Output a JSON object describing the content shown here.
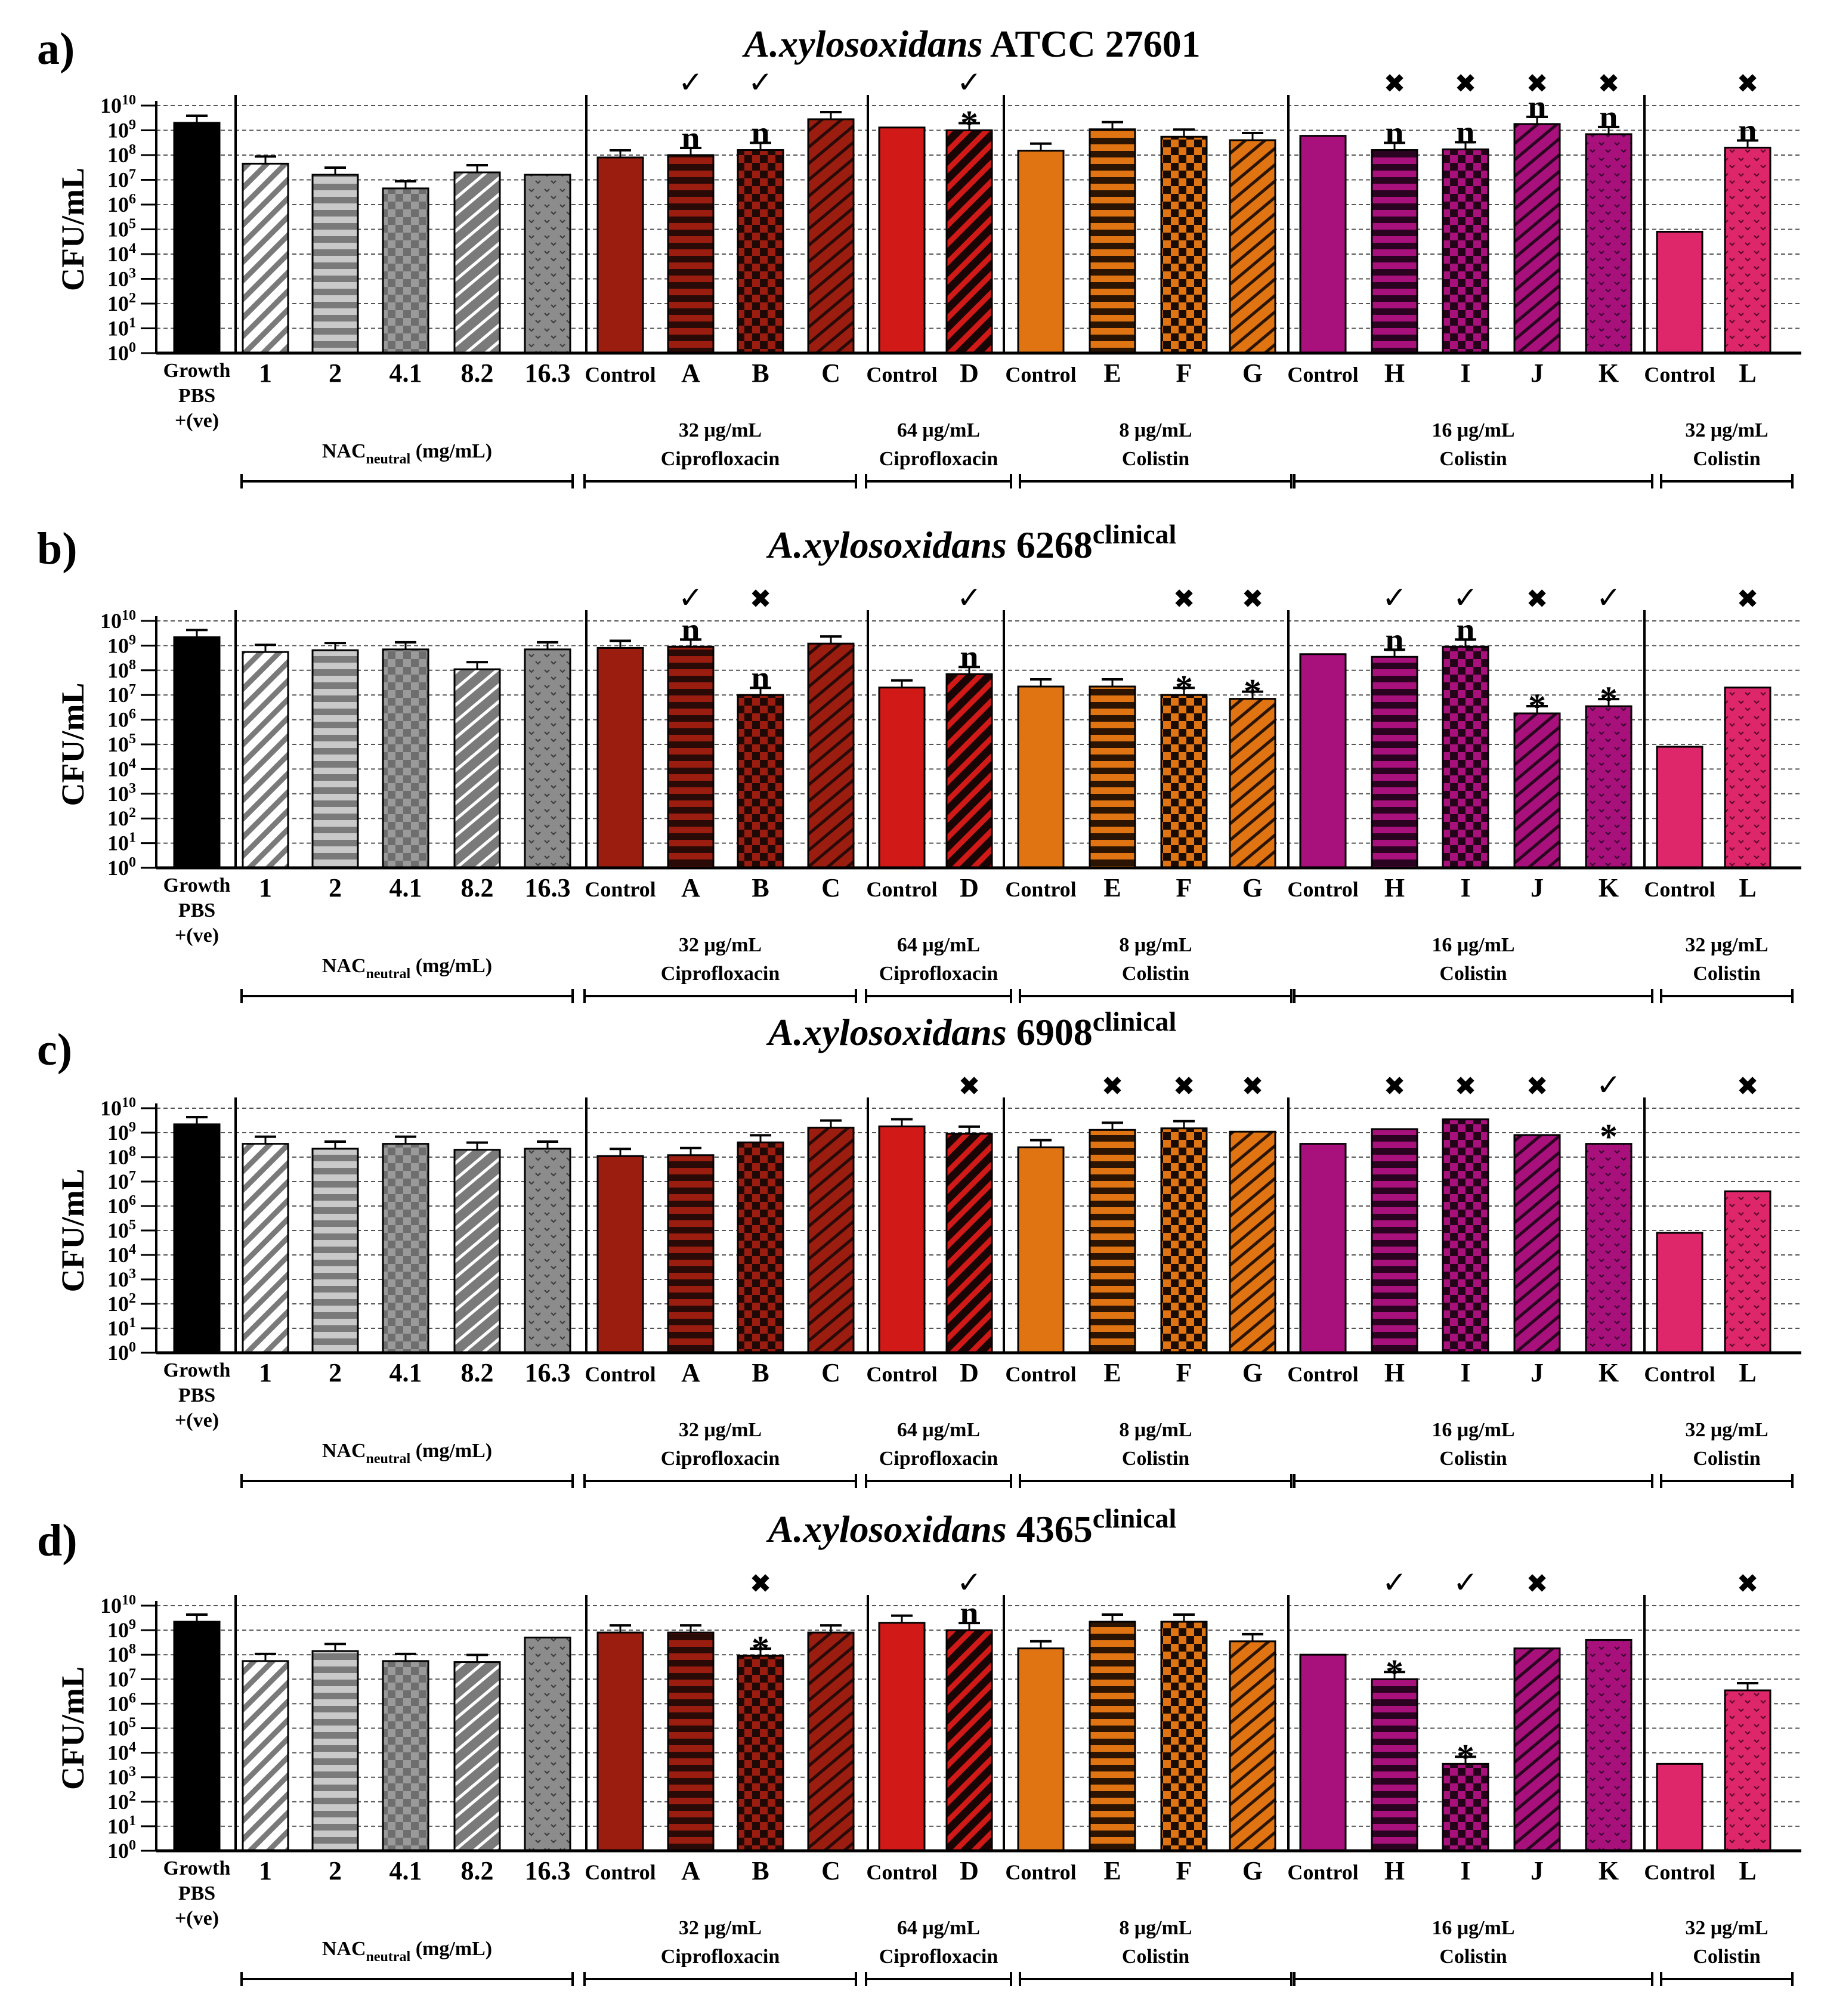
{
  "figure": {
    "ylabel": "CFU/mL",
    "y_ticks": [
      {
        "base": "10",
        "exp": "0"
      },
      {
        "base": "10",
        "exp": "1"
      },
      {
        "base": "10",
        "exp": "2"
      },
      {
        "base": "10",
        "exp": "3"
      },
      {
        "base": "10",
        "exp": "4"
      },
      {
        "base": "10",
        "exp": "5"
      },
      {
        "base": "10",
        "exp": "6"
      },
      {
        "base": "10",
        "exp": "7"
      },
      {
        "base": "10",
        "exp": "8"
      },
      {
        "base": "10",
        "exp": "9"
      },
      {
        "base": "10",
        "exp": "10"
      }
    ],
    "first_category_lines": [
      "Growth",
      "PBS",
      "+(ve)"
    ],
    "bar_labels": [
      "Growth PBS +(ve)",
      "1",
      "2",
      "4.1",
      "8.2",
      "16.3",
      "Control",
      "A",
      "B",
      "C",
      "Control",
      "D",
      "Control",
      "E",
      "F",
      "G",
      "Control",
      "H",
      "I",
      "J",
      "K",
      "Control",
      "L"
    ],
    "groups": [
      {
        "line1": "NAC",
        "line1_sub": "neutral",
        "line1_suffix": " (mg/mL)",
        "line2": ""
      },
      {
        "line1": "32 μg/mL",
        "line2": "Ciprofloxacin"
      },
      {
        "line1": "64 μg/mL",
        "line2": "Ciprofloxacin"
      },
      {
        "line1": "8 μg/mL",
        "line2": "Colistin"
      },
      {
        "line1": "16 μg/mL",
        "line2": "Colistin"
      },
      {
        "line1": "32 μg/mL",
        "line2": "Colistin"
      }
    ],
    "colors": {
      "growth": "#000000",
      "nac": "#7a7a7a",
      "cip32": "#9b1d10",
      "cip64": "#d11a17",
      "col8": "#e07412",
      "col16": "#a8107c",
      "col32": "#de266b"
    },
    "symbols": {
      "check": "✓",
      "cross": "✖",
      "star": "*",
      "n": "n"
    }
  },
  "chart_data": [
    {
      "type": "bar",
      "panel_label": "a)",
      "title_italic": "A.xylosoxidans",
      "title_rest": " ATCC 27601",
      "title_sup": "",
      "yscale": "log10",
      "ylim": [
        1,
        10000000000.0
      ],
      "values": [
        2000000000.0,
        45000000.0,
        16000000.0,
        4500000.0,
        20000000.0,
        16000000.0,
        80000000.0,
        100000000.0,
        160000000.0,
        2800000000.0,
        1300000000.0,
        1000000000.0,
        150000000.0,
        1100000000.0,
        550000000.0,
        400000000.0,
        600000000.0,
        160000000.0,
        170000000.0,
        1800000000.0,
        700000000.0,
        80000.0,
        200000000.0
      ],
      "has_error": [
        true,
        true,
        true,
        true,
        true,
        false,
        true,
        true,
        true,
        true,
        false,
        true,
        true,
        true,
        true,
        true,
        false,
        true,
        true,
        true,
        true,
        false,
        true
      ],
      "annotations": [
        {
          "bar": 7,
          "top": "check",
          "label": "n"
        },
        {
          "bar": 8,
          "top": "check",
          "label": "n"
        },
        {
          "bar": 11,
          "top": "check",
          "label": "star"
        },
        {
          "bar": 17,
          "top": "cross",
          "label": "n"
        },
        {
          "bar": 18,
          "top": "cross",
          "label": "n"
        },
        {
          "bar": 19,
          "top": "cross",
          "label": "n"
        },
        {
          "bar": 20,
          "top": "cross",
          "label": "n"
        },
        {
          "bar": 22,
          "top": "cross",
          "label": "n"
        }
      ]
    },
    {
      "type": "bar",
      "panel_label": "b)",
      "title_italic": "A.xylosoxidans",
      "title_rest": " 6268",
      "title_sup": "clinical",
      "yscale": "log10",
      "ylim": [
        1,
        10000000000.0
      ],
      "values": [
        2200000000.0,
        550000000.0,
        650000000.0,
        700000000.0,
        110000000.0,
        700000000.0,
        800000000.0,
        900000000.0,
        10000000.0,
        1200000000.0,
        20000000.0,
        70000000.0,
        22000000.0,
        22000000.0,
        10000000.0,
        7000000.0,
        450000000.0,
        350000000.0,
        900000000.0,
        1800000.0,
        3500000.0,
        80000.0,
        20000000.0
      ],
      "has_error": [
        true,
        true,
        true,
        true,
        true,
        true,
        true,
        true,
        true,
        true,
        true,
        true,
        true,
        true,
        true,
        true,
        false,
        true,
        true,
        true,
        true,
        false,
        false
      ],
      "annotations": [
        {
          "bar": 7,
          "top": "check",
          "label": "n"
        },
        {
          "bar": 8,
          "top": "cross",
          "label": "n"
        },
        {
          "bar": 11,
          "top": "check",
          "label": "n"
        },
        {
          "bar": 14,
          "top": "cross",
          "label": "star"
        },
        {
          "bar": 15,
          "top": "cross",
          "label": "star"
        },
        {
          "bar": 17,
          "top": "check",
          "label": "n"
        },
        {
          "bar": 18,
          "top": "check",
          "label": "n"
        },
        {
          "bar": 19,
          "top": "cross",
          "label": "star"
        },
        {
          "bar": 20,
          "top": "check",
          "label": "star"
        },
        {
          "bar": 22,
          "top": "cross",
          "label": ""
        }
      ]
    },
    {
      "type": "bar",
      "panel_label": "c)",
      "title_italic": "A.xylosoxidans",
      "title_rest": " 6908",
      "title_sup": "clinical",
      "yscale": "log10",
      "ylim": [
        1,
        10000000000.0
      ],
      "values": [
        2200000000.0,
        350000000.0,
        220000000.0,
        350000000.0,
        200000000.0,
        220000000.0,
        110000000.0,
        120000000.0,
        400000000.0,
        1600000000.0,
        1800000000.0,
        900000000.0,
        250000000.0,
        1300000000.0,
        1500000000.0,
        1100000000.0,
        350000000.0,
        1400000000.0,
        3500000000.0,
        800000000.0,
        350000000.0,
        80000.0,
        4000000.0
      ],
      "has_error": [
        true,
        true,
        true,
        true,
        true,
        true,
        true,
        true,
        true,
        true,
        true,
        true,
        true,
        true,
        true,
        false,
        false,
        false,
        false,
        false,
        false,
        false,
        false
      ],
      "annotations": [
        {
          "bar": 11,
          "top": "cross",
          "label": ""
        },
        {
          "bar": 13,
          "top": "cross",
          "label": ""
        },
        {
          "bar": 14,
          "top": "cross",
          "label": ""
        },
        {
          "bar": 15,
          "top": "cross",
          "label": ""
        },
        {
          "bar": 17,
          "top": "cross",
          "label": ""
        },
        {
          "bar": 18,
          "top": "cross",
          "label": ""
        },
        {
          "bar": 19,
          "top": "cross",
          "label": ""
        },
        {
          "bar": 20,
          "top": "check",
          "label": "star"
        },
        {
          "bar": 22,
          "top": "cross",
          "label": ""
        }
      ]
    },
    {
      "type": "bar",
      "panel_label": "d)",
      "title_italic": "A.xylosoxidans",
      "title_rest": " 4365",
      "title_sup": "clinical",
      "yscale": "log10",
      "ylim": [
        1,
        10000000000.0
      ],
      "values": [
        2200000000.0,
        55000000.0,
        140000000.0,
        55000000.0,
        50000000.0,
        500000000.0,
        800000000.0,
        800000000.0,
        90000000.0,
        800000000.0,
        2000000000.0,
        1000000000.0,
        180000000.0,
        2200000000.0,
        2200000000.0,
        350000000.0,
        100000000.0,
        10000000.0,
        3500.0,
        180000000.0,
        400000000.0,
        3500.0,
        3500000.0
      ],
      "has_error": [
        true,
        true,
        true,
        true,
        true,
        false,
        true,
        true,
        true,
        true,
        true,
        true,
        true,
        true,
        true,
        true,
        false,
        true,
        true,
        false,
        false,
        false,
        true
      ],
      "annotations": [
        {
          "bar": 8,
          "top": "cross",
          "label": "star"
        },
        {
          "bar": 11,
          "top": "check",
          "label": "n"
        },
        {
          "bar": 17,
          "top": "check",
          "label": "star"
        },
        {
          "bar": 18,
          "top": "check",
          "label": "star"
        },
        {
          "bar": 19,
          "top": "cross",
          "label": ""
        },
        {
          "bar": 22,
          "top": "cross",
          "label": ""
        }
      ]
    }
  ]
}
